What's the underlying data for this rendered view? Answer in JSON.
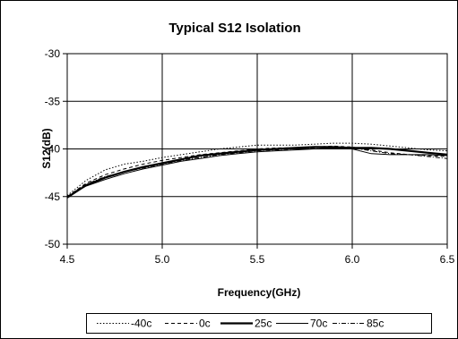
{
  "chart_data": {
    "type": "line",
    "title": "Typical S12 Isolation",
    "xlabel": "Frequency(GHz)",
    "ylabel": "S12(dB)",
    "xlim": [
      4.5,
      6.5
    ],
    "ylim": [
      -50,
      -30
    ],
    "x_ticks": [
      4.5,
      5.0,
      5.5,
      6.0,
      6.5
    ],
    "x_tick_labels": [
      "4.5",
      "5.0",
      "5.5",
      "6.0",
      "6.5"
    ],
    "y_ticks": [
      -30,
      -35,
      -40,
      -45,
      -50
    ],
    "y_tick_labels": [
      "-30",
      "-35",
      "-40",
      "-45",
      "-50"
    ],
    "grid": true,
    "legend_position": "bottom",
    "series": [
      {
        "name": "-40c",
        "style": "dotted",
        "color": "#000000",
        "x": [
          4.5,
          4.6,
          4.7,
          4.8,
          4.9,
          5.0,
          5.1,
          5.2,
          5.3,
          5.4,
          5.5,
          5.6,
          5.7,
          5.8,
          5.9,
          6.0,
          6.1,
          6.2,
          6.3,
          6.4,
          6.5
        ],
        "y": [
          -44.9,
          -43.3,
          -42.2,
          -41.6,
          -41.3,
          -40.9,
          -40.6,
          -40.3,
          -40.0,
          -39.8,
          -39.6,
          -39.6,
          -39.6,
          -39.5,
          -39.4,
          -39.4,
          -39.5,
          -39.7,
          -39.9,
          -40.1,
          -40.2
        ]
      },
      {
        "name": "0c",
        "style": "dashed",
        "color": "#000000",
        "x": [
          4.5,
          4.6,
          4.7,
          4.8,
          4.9,
          5.0,
          5.1,
          5.2,
          5.3,
          5.4,
          5.5,
          5.6,
          5.7,
          5.8,
          5.9,
          6.0,
          6.1,
          6.2,
          6.3,
          6.4,
          6.5
        ],
        "y": [
          -45.0,
          -43.6,
          -42.7,
          -42.1,
          -41.6,
          -41.2,
          -40.9,
          -40.6,
          -40.4,
          -40.2,
          -40.0,
          -39.9,
          -39.9,
          -39.8,
          -39.7,
          -39.8,
          -40.1,
          -40.4,
          -40.6,
          -40.7,
          -40.8
        ]
      },
      {
        "name": "25c",
        "style": "thick",
        "color": "#000000",
        "x": [
          4.5,
          4.6,
          4.7,
          4.8,
          4.9,
          5.0,
          5.1,
          5.2,
          5.3,
          5.4,
          5.5,
          5.6,
          5.7,
          5.8,
          5.9,
          6.0,
          6.1,
          6.2,
          6.3,
          6.4,
          6.5
        ],
        "y": [
          -45.1,
          -43.8,
          -43.0,
          -42.4,
          -41.9,
          -41.5,
          -41.1,
          -40.7,
          -40.5,
          -40.3,
          -40.1,
          -40.0,
          -39.9,
          -39.8,
          -39.8,
          -39.9,
          -39.9,
          -40.0,
          -40.2,
          -40.4,
          -40.6
        ]
      },
      {
        "name": "70c",
        "style": "solid",
        "color": "#000000",
        "x": [
          4.5,
          4.6,
          4.7,
          4.8,
          4.9,
          5.0,
          5.1,
          5.2,
          5.3,
          5.4,
          5.5,
          5.6,
          5.7,
          5.8,
          5.9,
          6.0,
          6.1,
          6.2,
          6.3,
          6.4,
          6.5
        ],
        "y": [
          -45.0,
          -43.9,
          -43.2,
          -42.6,
          -42.1,
          -41.7,
          -41.3,
          -41.0,
          -40.7,
          -40.5,
          -40.3,
          -40.2,
          -40.1,
          -40.0,
          -39.9,
          -40.0,
          -40.5,
          -40.6,
          -40.6,
          -40.6,
          -40.7
        ]
      },
      {
        "name": "85c",
        "style": "dashdot",
        "color": "#000000",
        "x": [
          4.5,
          4.6,
          4.7,
          4.8,
          4.9,
          5.0,
          5.1,
          5.2,
          5.3,
          5.4,
          5.5,
          5.6,
          5.7,
          5.8,
          5.9,
          6.0,
          6.1,
          6.2,
          6.3,
          6.4,
          6.5
        ],
        "y": [
          -45.0,
          -43.7,
          -42.9,
          -42.4,
          -42.0,
          -41.6,
          -41.2,
          -40.9,
          -40.6,
          -40.4,
          -40.2,
          -40.1,
          -40.0,
          -39.9,
          -39.8,
          -39.9,
          -40.2,
          -40.5,
          -40.6,
          -40.8,
          -41.0
        ]
      }
    ]
  }
}
